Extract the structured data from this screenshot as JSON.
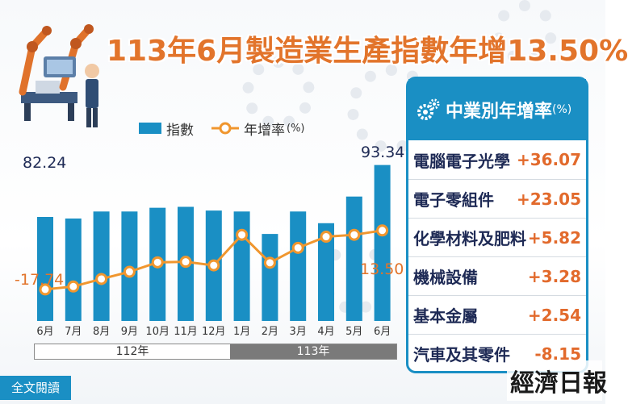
{
  "title": "113年6月製造業生產指數年增13.50%",
  "legend": {
    "bar_label": "指數",
    "line_label": "年增率",
    "line_unit": "(%)"
  },
  "years": {
    "y112": "112年",
    "y113": "113年"
  },
  "panel": {
    "title": "中業別年增率",
    "unit": "(%)",
    "rows": [
      {
        "name": "電腦電子光學",
        "value": "+36.07"
      },
      {
        "name": "電子零組件",
        "value": "+23.05"
      },
      {
        "name": "化學材料及肥料",
        "value": "+5.82"
      },
      {
        "name": "機械設備",
        "value": "+3.28"
      },
      {
        "name": "基本金屬",
        "value": "+2.54"
      },
      {
        "name": "汽車及其零件",
        "value": "-8.15"
      }
    ]
  },
  "full_text_label": "全文閱讀",
  "logo": "經濟日報",
  "colors": {
    "bar": "#1a8fc4",
    "line": "#f0962e",
    "title": "#e2742b",
    "panel": "#1a8fc4",
    "accent_value": "#e26a2c"
  },
  "chart_data": {
    "type": "bar",
    "categories": [
      "6月",
      "7月",
      "8月",
      "9月",
      "10月",
      "11月",
      "12月",
      "1月",
      "2月",
      "3月",
      "4月",
      "5月",
      "6月"
    ],
    "series": [
      {
        "name": "指數",
        "type": "bar",
        "values": [
          82.24,
          81.9,
          83.4,
          83.4,
          84.2,
          84.4,
          83.6,
          83.4,
          78.6,
          83.4,
          80.9,
          86.6,
          93.34
        ]
      },
      {
        "name": "年增率",
        "type": "line",
        "values": [
          -17.74,
          -16.2,
          -12.2,
          -8.4,
          -3.4,
          -3.1,
          -5.0,
          11.2,
          -3.6,
          4.3,
          10.2,
          11.2,
          13.5
        ]
      }
    ],
    "data_labels": {
      "first_bar": "82.24",
      "last_bar": "93.34",
      "first_line": "-17.74",
      "last_line": "13.50"
    },
    "legend_position": "top",
    "grid": false
  }
}
